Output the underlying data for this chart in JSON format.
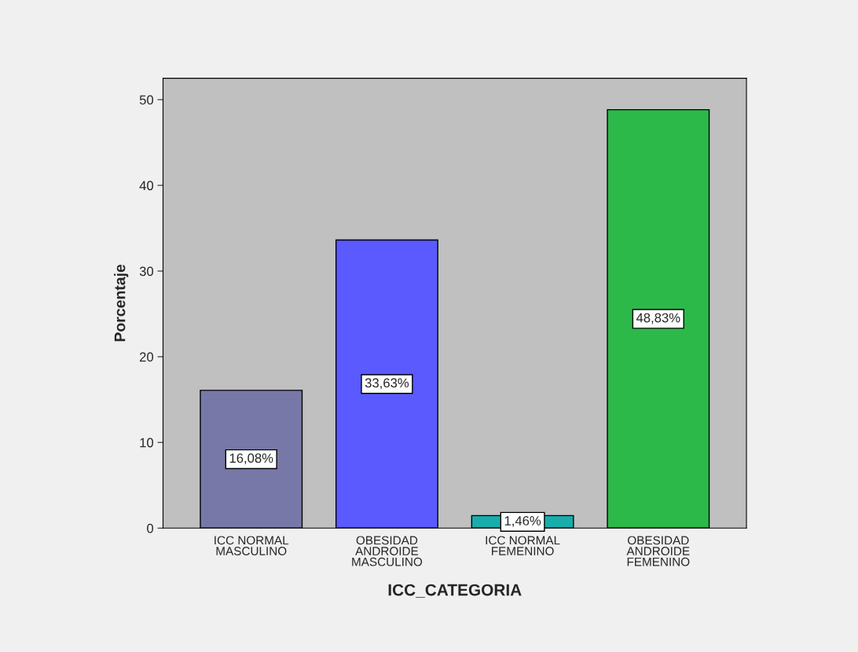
{
  "chart_data": {
    "type": "bar",
    "categories": [
      "ICC NORMAL\nMASCULINO",
      "OBESIDAD\nANDROIDE\nMASCULINO",
      "ICC NORMAL\nFEMENINO",
      "OBESIDAD\nANDROIDE\nFEMENINO"
    ],
    "values": [
      16.08,
      33.63,
      1.46,
      48.83
    ],
    "value_labels": [
      "16,08%",
      "33,63%",
      "1,46%",
      "48,83%"
    ],
    "colors": [
      "#7878a8",
      "#5a5aff",
      "#1aabab",
      "#2db84a"
    ],
    "xlabel": "ICC_CATEGORIA",
    "ylabel": "Porcentaje",
    "ylim": [
      0,
      52.5
    ],
    "yticks": [
      0,
      10,
      20,
      30,
      40,
      50
    ],
    "grid": false,
    "legend": false
  }
}
